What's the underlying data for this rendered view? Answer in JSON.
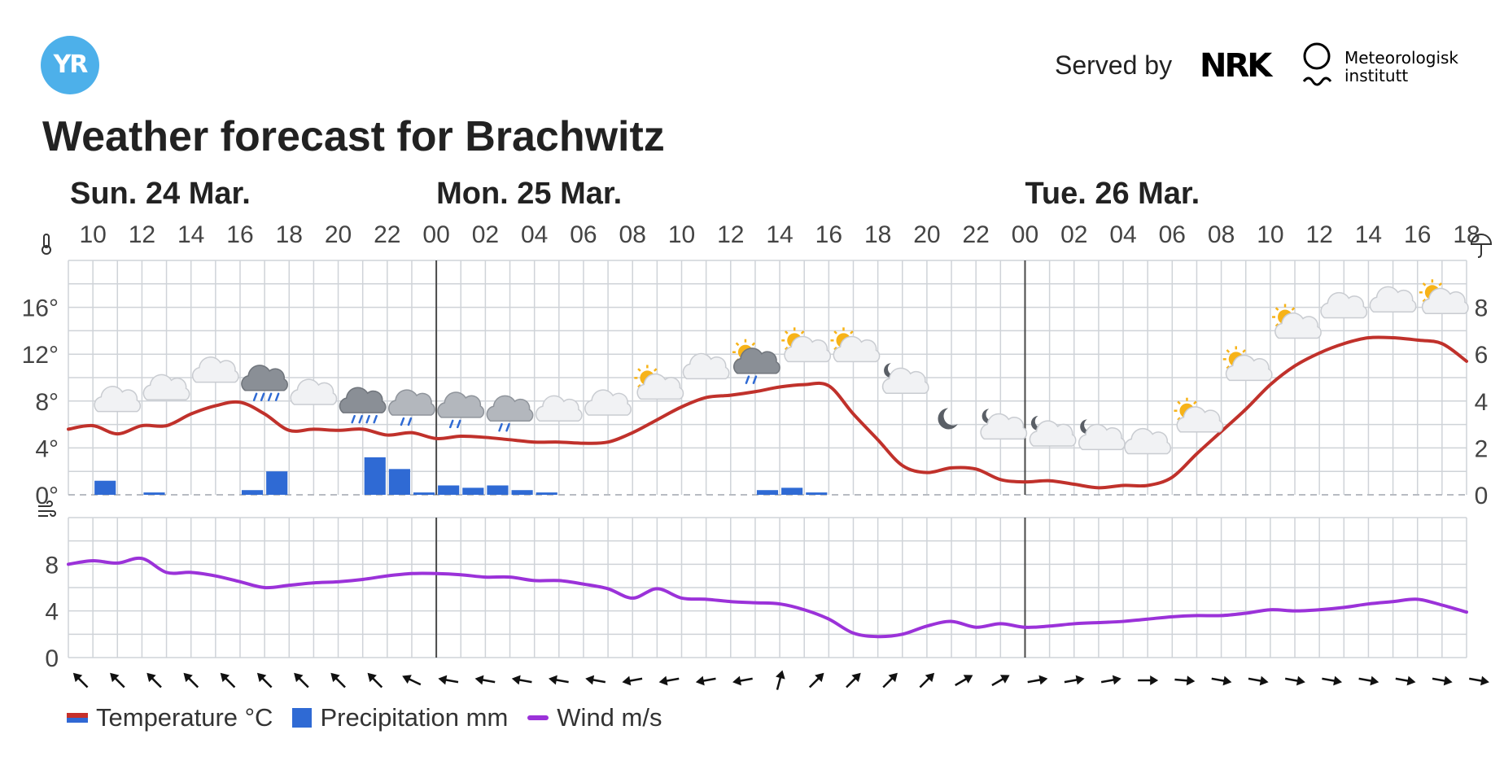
{
  "header": {
    "logo_text": "YR",
    "served_by": "Served by",
    "nrk_logo": "NRK",
    "met_line1": "Meteorologisk",
    "met_line2": "institutt",
    "title": "Weather forecast for Brachwitz"
  },
  "colors": {
    "temperature": "#c0312b",
    "temperature_cold": "#3068d4",
    "precipitation": "#2f6ad4",
    "wind": "#9b32d9",
    "grid": "#cfd3d8",
    "midnight": "#4a4a4a"
  },
  "legend": {
    "temperature": "Temperature °C",
    "precipitation": "Precipitation mm",
    "wind": "Wind m/s"
  },
  "icons": {
    "temp_axis": "thermometer-icon",
    "precip_axis": "umbrella-icon",
    "wind_axis": "wind-icon"
  },
  "chart_data": {
    "type": "line",
    "days": [
      {
        "label": "Sun. 24 Mar.",
        "hour": 10
      },
      {
        "label": "Mon. 25 Mar.",
        "hour": 24
      },
      {
        "label": "Tue. 26 Mar.",
        "hour": 48
      }
    ],
    "hour_labels": [
      "10",
      "12",
      "14",
      "16",
      "18",
      "20",
      "22",
      "00",
      "02",
      "04",
      "06",
      "08",
      "10",
      "12",
      "14",
      "16",
      "18",
      "20",
      "22",
      "00",
      "02",
      "04",
      "06",
      "08",
      "10",
      "12",
      "14",
      "16",
      "18"
    ],
    "start_hour": 9,
    "end_hour": 66,
    "temperature": {
      "unit": "°C",
      "ylim": [
        0,
        20
      ],
      "ticks": [
        "0°",
        "4°",
        "8°",
        "12°",
        "16°"
      ],
      "x": [
        9,
        10,
        11,
        12,
        13,
        14,
        15,
        16,
        17,
        18,
        19,
        20,
        21,
        22,
        23,
        24,
        25,
        26,
        27,
        28,
        29,
        30,
        31,
        32,
        33,
        34,
        35,
        36,
        37,
        38,
        39,
        40,
        41,
        42,
        43,
        44,
        45,
        46,
        47,
        48,
        49,
        50,
        51,
        52,
        53,
        54,
        55,
        56,
        57,
        58,
        59,
        60,
        61,
        62,
        63,
        64,
        65,
        66
      ],
      "values": [
        5.6,
        5.9,
        5.2,
        5.9,
        5.9,
        6.9,
        7.6,
        7.9,
        6.9,
        5.5,
        5.6,
        5.5,
        5.6,
        5.1,
        5.3,
        4.8,
        5.0,
        4.9,
        4.7,
        4.5,
        4.5,
        4.4,
        4.5,
        5.3,
        6.4,
        7.5,
        8.3,
        8.5,
        8.8,
        9.2,
        9.4,
        9.3,
        6.9,
        4.7,
        2.5,
        1.9,
        2.3,
        2.2,
        1.3,
        1.1,
        1.2,
        0.9,
        0.6,
        0.8,
        0.8,
        1.5,
        3.5,
        5.4,
        7.3,
        9.4,
        11.0,
        12.1,
        12.9,
        13.4,
        13.4,
        13.2,
        12.9,
        11.4
      ]
    },
    "precipitation": {
      "unit": "mm",
      "ylim": [
        0,
        10
      ],
      "ticks": [
        "0",
        "2",
        "4",
        "6",
        "8"
      ],
      "values": [
        0,
        0.6,
        0,
        0.1,
        0,
        0,
        0,
        0.2,
        1.0,
        0,
        0,
        0,
        1.6,
        1.1,
        0.1,
        0.4,
        0.3,
        0.4,
        0.2,
        0.1,
        0,
        0,
        0,
        0,
        0,
        0,
        0,
        0,
        0.2,
        0.3,
        0.1,
        0,
        0,
        0,
        0,
        0,
        0,
        0,
        0,
        0,
        0,
        0,
        0,
        0,
        0,
        0,
        0,
        0,
        0,
        0,
        0,
        0,
        0,
        0,
        0,
        0,
        0,
        0
      ]
    },
    "wind": {
      "unit": "m/s",
      "ylim": [
        0,
        12
      ],
      "ticks": [
        "0",
        "4",
        "8"
      ],
      "x": [
        9,
        10,
        11,
        12,
        13,
        14,
        15,
        16,
        17,
        18,
        19,
        20,
        21,
        22,
        23,
        24,
        25,
        26,
        27,
        28,
        29,
        30,
        31,
        32,
        33,
        34,
        35,
        36,
        37,
        38,
        39,
        40,
        41,
        42,
        43,
        44,
        45,
        46,
        47,
        48,
        49,
        50,
        51,
        52,
        53,
        54,
        55,
        56,
        57,
        58,
        59,
        60,
        61,
        62,
        63,
        64,
        65,
        66
      ],
      "values": [
        8.0,
        8.3,
        8.1,
        8.5,
        7.3,
        7.3,
        7.0,
        6.5,
        6.0,
        6.2,
        6.4,
        6.5,
        6.7,
        7.0,
        7.2,
        7.2,
        7.1,
        6.9,
        6.9,
        6.6,
        6.6,
        6.3,
        5.9,
        5.1,
        5.9,
        5.1,
        5.0,
        4.8,
        4.7,
        4.6,
        4.1,
        3.3,
        2.1,
        1.8,
        2.0,
        2.7,
        3.1,
        2.6,
        2.9,
        2.6,
        2.7,
        2.9,
        3.0,
        3.1,
        3.3,
        3.5,
        3.6,
        3.6,
        3.8,
        4.1,
        4.0,
        4.1,
        4.3,
        4.6,
        4.8,
        5.0,
        4.5,
        3.9
      ]
    },
    "wind_directions_deg": [
      -45,
      -45,
      -45,
      -45,
      -45,
      -45,
      -45,
      -45,
      -45,
      -65,
      -80,
      -80,
      -80,
      -80,
      -80,
      -100,
      -100,
      -100,
      -100,
      15,
      45,
      45,
      45,
      45,
      60,
      60,
      80,
      80,
      80,
      90,
      95,
      100,
      100,
      100,
      100,
      100,
      100,
      100,
      100
    ],
    "weather_symbols": [
      {
        "hour": 11,
        "type": "cloud",
        "temp": 7.8
      },
      {
        "hour": 13,
        "type": "cloud",
        "temp": 8.8
      },
      {
        "hour": 15,
        "type": "cloud",
        "temp": 10.3
      },
      {
        "hour": 17,
        "type": "thunder-rain",
        "temp": 9.6
      },
      {
        "hour": 19,
        "type": "cloud",
        "temp": 8.4
      },
      {
        "hour": 21,
        "type": "rain-heavy",
        "temp": 7.7
      },
      {
        "hour": 23,
        "type": "rain-light",
        "temp": 7.5
      },
      {
        "hour": 25,
        "type": "rain-light",
        "temp": 7.3
      },
      {
        "hour": 27,
        "type": "rain-light",
        "temp": 7.0
      },
      {
        "hour": 29,
        "type": "cloud",
        "temp": 7.0
      },
      {
        "hour": 31,
        "type": "cloud",
        "temp": 7.5
      },
      {
        "hour": 33,
        "type": "sun-cloud",
        "temp": 9.0
      },
      {
        "hour": 35,
        "type": "cloud",
        "temp": 10.6
      },
      {
        "hour": 37,
        "type": "sun-rain",
        "temp": 11.2
      },
      {
        "hour": 39,
        "type": "sun-cloud",
        "temp": 12.2
      },
      {
        "hour": 41,
        "type": "sun-cloud",
        "temp": 12.2
      },
      {
        "hour": 43,
        "type": "moon-cloud",
        "temp": 9.5
      },
      {
        "hour": 45,
        "type": "moon",
        "temp": 5.8
      },
      {
        "hour": 47,
        "type": "moon-cloud",
        "temp": 5.6
      },
      {
        "hour": 49,
        "type": "moon-cloud",
        "temp": 5.0
      },
      {
        "hour": 51,
        "type": "moon-cloud",
        "temp": 4.7
      },
      {
        "hour": 53,
        "type": "cloud",
        "temp": 4.2
      },
      {
        "hour": 55,
        "type": "sun-cloud",
        "temp": 6.2
      },
      {
        "hour": 57,
        "type": "sun-cloud",
        "temp": 10.6
      },
      {
        "hour": 59,
        "type": "sun-cloud",
        "temp": 14.2
      },
      {
        "hour": 61,
        "type": "cloud",
        "temp": 15.8
      },
      {
        "hour": 63,
        "type": "cloud",
        "temp": 16.3
      },
      {
        "hour": 65,
        "type": "sun-cloud",
        "temp": 16.3
      }
    ]
  }
}
